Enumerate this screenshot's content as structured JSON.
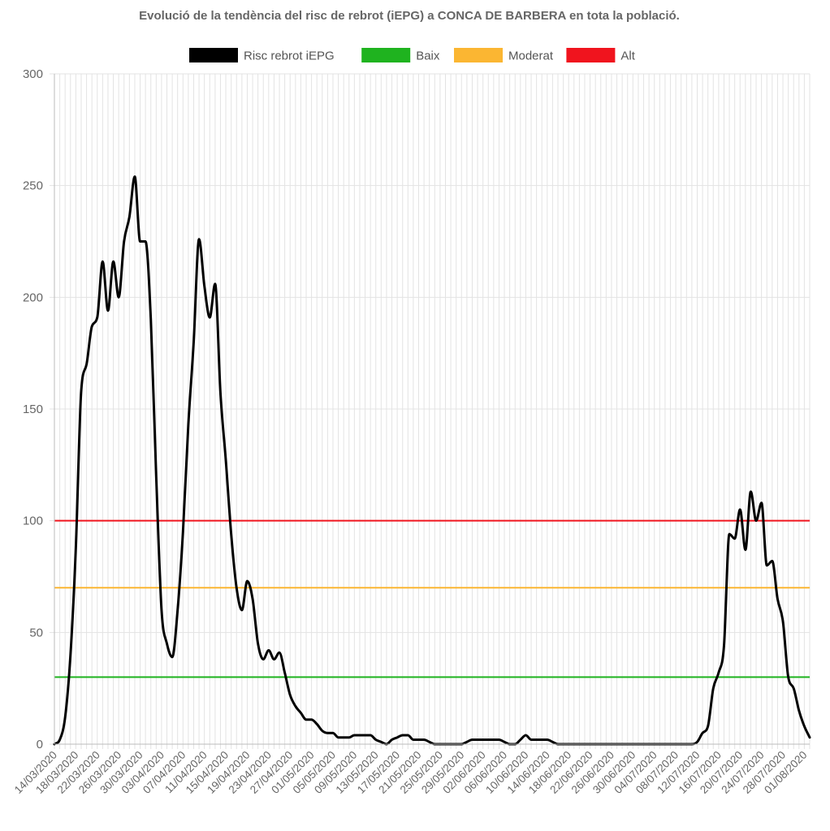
{
  "chart_data": {
    "type": "line",
    "title": "Evolució de la tendència del risc de rebrot (iEPG) a CONCA DE BARBERA en tota la població.",
    "xlabel": "",
    "ylabel": "",
    "ylim": [
      0,
      300
    ],
    "yticks": [
      0,
      50,
      100,
      150,
      200,
      250,
      300
    ],
    "grid": true,
    "legend_position": "top",
    "x_start": "14/03/2020",
    "x_end": "02/08/2020",
    "x_tick_labels": [
      "14/03/2020",
      "18/03/2020",
      "22/03/2020",
      "26/03/2020",
      "30/03/2020",
      "03/04/2020",
      "07/04/2020",
      "11/04/2020",
      "15/04/2020",
      "19/04/2020",
      "23/04/2020",
      "27/04/2020",
      "01/05/2020",
      "05/05/2020",
      "09/05/2020",
      "13/05/2020",
      "17/05/2020",
      "21/05/2020",
      "25/05/2020",
      "29/05/2020",
      "02/06/2020",
      "06/06/2020",
      "10/06/2020",
      "14/06/2020",
      "18/06/2020",
      "22/06/2020",
      "26/06/2020",
      "30/06/2020",
      "04/07/2020",
      "08/07/2020",
      "12/07/2020",
      "16/07/2020",
      "20/07/2020",
      "24/07/2020",
      "28/07/2020",
      "01/08/2020"
    ],
    "series": [
      {
        "name": "Risc rebrot iEPG",
        "color": "#000000",
        "points": [
          [
            "14/03/2020",
            0
          ],
          [
            "15/03/2020",
            2
          ],
          [
            "16/03/2020",
            12
          ],
          [
            "17/03/2020",
            40
          ],
          [
            "18/03/2020",
            88
          ],
          [
            "19/03/2020",
            158
          ],
          [
            "20/03/2020",
            170
          ],
          [
            "21/03/2020",
            187
          ],
          [
            "22/03/2020",
            191
          ],
          [
            "23/03/2020",
            216
          ],
          [
            "24/03/2020",
            194
          ],
          [
            "25/03/2020",
            216
          ],
          [
            "26/03/2020",
            200
          ],
          [
            "27/03/2020",
            225
          ],
          [
            "28/03/2020",
            236
          ],
          [
            "29/03/2020",
            254
          ],
          [
            "30/03/2020",
            225
          ],
          [
            "31/03/2020",
            225
          ],
          [
            "01/04/2020",
            190
          ],
          [
            "02/04/2020",
            120
          ],
          [
            "03/04/2020",
            60
          ],
          [
            "04/04/2020",
            45
          ],
          [
            "05/04/2020",
            39
          ],
          [
            "06/04/2020",
            60
          ],
          [
            "07/04/2020",
            95
          ],
          [
            "08/04/2020",
            143
          ],
          [
            "09/04/2020",
            180
          ],
          [
            "10/04/2020",
            226
          ],
          [
            "11/04/2020",
            205
          ],
          [
            "12/04/2020",
            191
          ],
          [
            "13/04/2020",
            206
          ],
          [
            "14/04/2020",
            157
          ],
          [
            "15/04/2020",
            127
          ],
          [
            "16/04/2020",
            94
          ],
          [
            "17/04/2020",
            70
          ],
          [
            "18/04/2020",
            60
          ],
          [
            "19/04/2020",
            73
          ],
          [
            "20/04/2020",
            65
          ],
          [
            "21/04/2020",
            45
          ],
          [
            "22/04/2020",
            38
          ],
          [
            "23/04/2020",
            42
          ],
          [
            "24/04/2020",
            38
          ],
          [
            "25/04/2020",
            41
          ],
          [
            "26/04/2020",
            32
          ],
          [
            "27/04/2020",
            22
          ],
          [
            "28/04/2020",
            17
          ],
          [
            "29/04/2020",
            14
          ],
          [
            "30/04/2020",
            11
          ],
          [
            "01/05/2020",
            11
          ],
          [
            "02/05/2020",
            9
          ],
          [
            "03/05/2020",
            6
          ],
          [
            "04/05/2020",
            5
          ],
          [
            "05/05/2020",
            5
          ],
          [
            "06/05/2020",
            3
          ],
          [
            "07/05/2020",
            3
          ],
          [
            "08/05/2020",
            3
          ],
          [
            "09/05/2020",
            4
          ],
          [
            "10/05/2020",
            4
          ],
          [
            "11/05/2020",
            4
          ],
          [
            "12/05/2020",
            4
          ],
          [
            "13/05/2020",
            2
          ],
          [
            "14/05/2020",
            1
          ],
          [
            "15/05/2020",
            0
          ],
          [
            "16/05/2020",
            2
          ],
          [
            "17/05/2020",
            3
          ],
          [
            "18/05/2020",
            4
          ],
          [
            "19/05/2020",
            4
          ],
          [
            "20/05/2020",
            2
          ],
          [
            "21/05/2020",
            2
          ],
          [
            "22/05/2020",
            2
          ],
          [
            "23/05/2020",
            1
          ],
          [
            "24/05/2020",
            0
          ],
          [
            "25/05/2020",
            0
          ],
          [
            "26/05/2020",
            0
          ],
          [
            "27/05/2020",
            0
          ],
          [
            "28/05/2020",
            0
          ],
          [
            "29/05/2020",
            0
          ],
          [
            "30/05/2020",
            1
          ],
          [
            "31/05/2020",
            2
          ],
          [
            "01/06/2020",
            2
          ],
          [
            "02/06/2020",
            2
          ],
          [
            "03/06/2020",
            2
          ],
          [
            "04/06/2020",
            2
          ],
          [
            "05/06/2020",
            2
          ],
          [
            "06/06/2020",
            1
          ],
          [
            "07/06/2020",
            0
          ],
          [
            "08/06/2020",
            0
          ],
          [
            "09/06/2020",
            2
          ],
          [
            "10/06/2020",
            4
          ],
          [
            "11/06/2020",
            2
          ],
          [
            "12/06/2020",
            2
          ],
          [
            "13/06/2020",
            2
          ],
          [
            "14/06/2020",
            2
          ],
          [
            "15/06/2020",
            1
          ],
          [
            "16/06/2020",
            0
          ],
          [
            "17/06/2020",
            0
          ],
          [
            "18/06/2020",
            0
          ],
          [
            "19/06/2020",
            0
          ],
          [
            "20/06/2020",
            0
          ],
          [
            "21/06/2020",
            0
          ],
          [
            "22/06/2020",
            0
          ],
          [
            "23/06/2020",
            0
          ],
          [
            "24/06/2020",
            0
          ],
          [
            "25/06/2020",
            0
          ],
          [
            "26/06/2020",
            0
          ],
          [
            "27/06/2020",
            0
          ],
          [
            "28/06/2020",
            0
          ],
          [
            "29/06/2020",
            0
          ],
          [
            "30/06/2020",
            0
          ],
          [
            "01/07/2020",
            0
          ],
          [
            "02/07/2020",
            0
          ],
          [
            "03/07/2020",
            0
          ],
          [
            "04/07/2020",
            0
          ],
          [
            "05/07/2020",
            0
          ],
          [
            "06/07/2020",
            0
          ],
          [
            "07/07/2020",
            0
          ],
          [
            "08/07/2020",
            0
          ],
          [
            "09/07/2020",
            0
          ],
          [
            "10/07/2020",
            0
          ],
          [
            "11/07/2020",
            0
          ],
          [
            "12/07/2020",
            1
          ],
          [
            "13/07/2020",
            5
          ],
          [
            "14/07/2020",
            8
          ],
          [
            "15/07/2020",
            25
          ],
          [
            "16/07/2020",
            32
          ],
          [
            "17/07/2020",
            44
          ],
          [
            "18/07/2020",
            94
          ],
          [
            "19/07/2020",
            92
          ],
          [
            "20/07/2020",
            105
          ],
          [
            "21/07/2020",
            87
          ],
          [
            "22/07/2020",
            113
          ],
          [
            "23/07/2020",
            100
          ],
          [
            "24/07/2020",
            108
          ],
          [
            "25/07/2020",
            80
          ],
          [
            "26/07/2020",
            82
          ],
          [
            "27/07/2020",
            65
          ],
          [
            "28/07/2020",
            55
          ],
          [
            "29/07/2020",
            30
          ],
          [
            "30/07/2020",
            25
          ],
          [
            "31/07/2020",
            15
          ],
          [
            "01/08/2020",
            8
          ],
          [
            "02/08/2020",
            3
          ]
        ]
      },
      {
        "name": "Baix",
        "color": "#1fb31f",
        "value": 30
      },
      {
        "name": "Moderat",
        "color": "#fbb632",
        "value": 70
      },
      {
        "name": "Alt",
        "color": "#f0141e",
        "value": 100
      }
    ]
  }
}
